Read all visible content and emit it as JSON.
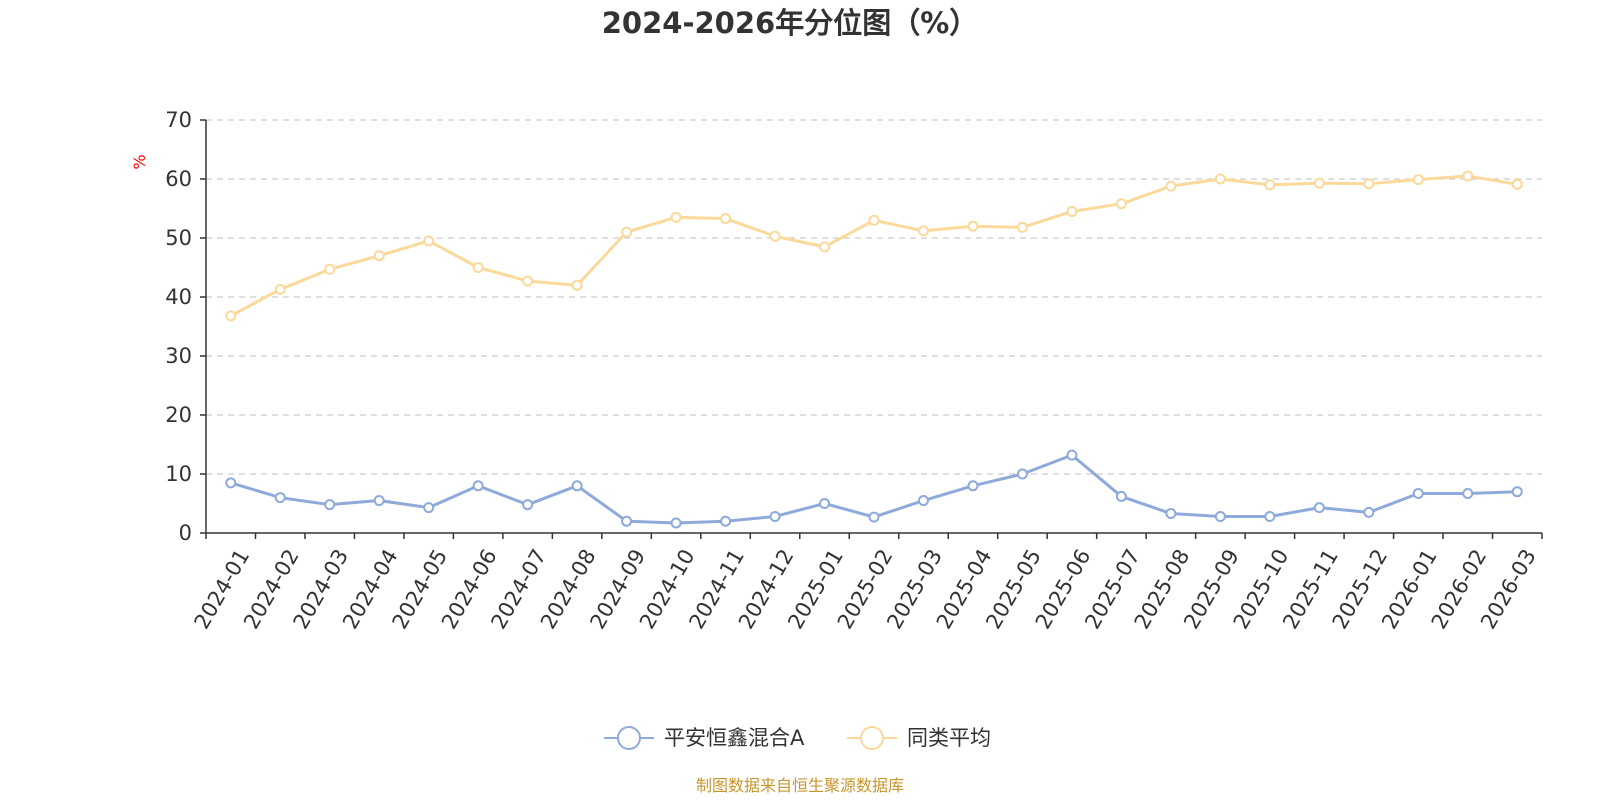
{
  "chart_data": {
    "type": "line",
    "title": "2024-2026年分位图（%）",
    "ylabel": "%",
    "ylim": [
      0,
      70
    ],
    "yticks": [
      0,
      10,
      20,
      30,
      40,
      50,
      60,
      70
    ],
    "grid": true,
    "legend_position": "bottom",
    "categories": [
      "2024-01",
      "2024-02",
      "2024-03",
      "2024-04",
      "2024-05",
      "2024-06",
      "2024-07",
      "2024-08",
      "2024-09",
      "2024-10",
      "2024-11",
      "2024-12",
      "2025-01",
      "2025-02",
      "2025-03",
      "2025-04",
      "2025-05",
      "2025-06",
      "2025-07",
      "2025-08",
      "2025-09",
      "2025-10",
      "2025-11",
      "2025-12",
      "2026-01",
      "2026-02",
      "2026-03"
    ],
    "series": [
      {
        "name": "平安恒鑫混合A",
        "color": "#8eaadb",
        "values": [
          8.5,
          6.0,
          4.8,
          5.5,
          4.3,
          8.0,
          4.8,
          8.0,
          2.0,
          1.7,
          2.0,
          2.8,
          5.0,
          2.7,
          5.5,
          8.0,
          10.0,
          13.2,
          6.2,
          3.3,
          2.8,
          2.8,
          4.3,
          3.5,
          6.7,
          6.7,
          7.0
        ]
      },
      {
        "name": "同类平均",
        "color": "#fbd99a",
        "values": [
          36.8,
          41.3,
          44.7,
          47.0,
          49.5,
          45.0,
          42.7,
          42.0,
          51.0,
          53.5,
          53.3,
          50.3,
          48.5,
          53.0,
          51.2,
          52.0,
          51.8,
          54.5,
          55.8,
          58.8,
          60.0,
          59.0,
          59.3,
          59.2,
          59.9,
          60.5,
          59.1
        ]
      }
    ]
  },
  "ylabel_color": "#ff0000",
  "axis_color": "#333333",
  "grid_color": "#cccccc",
  "source_text": "制图数据来自恒生聚源数据库",
  "source_color": "#c8962e"
}
